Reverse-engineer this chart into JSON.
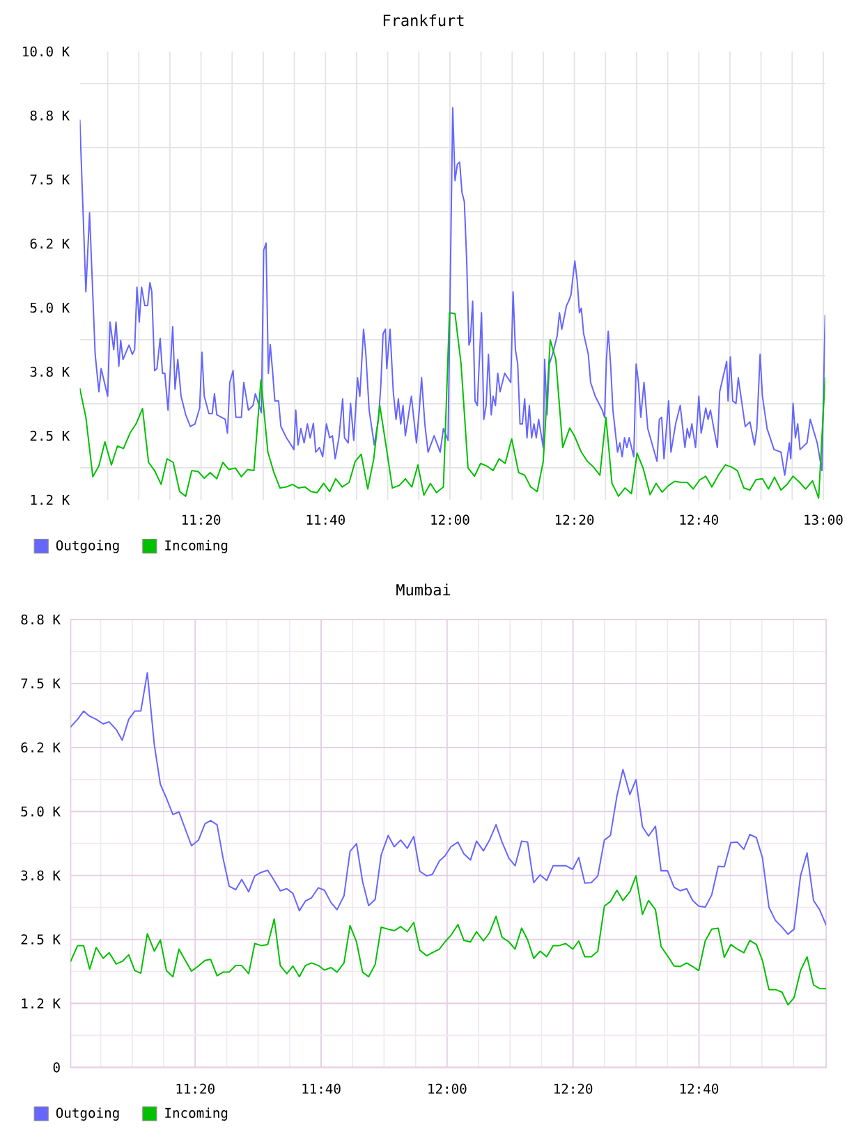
{
  "chart_data": [
    {
      "type": "line",
      "title": "Frankfurt",
      "xlim": [
        11.0087,
        13.005
      ],
      "ylim": [
        1250,
        10000
      ],
      "xticks": [
        {
          "value": 11.0833,
          "label": null
        },
        {
          "value": 11.1667,
          "label": null
        },
        {
          "value": 11.25,
          "label": null
        },
        {
          "value": 11.3333,
          "label": "11:20"
        },
        {
          "value": 11.4167,
          "label": null
        },
        {
          "value": 11.5,
          "label": null
        },
        {
          "value": 11.5833,
          "label": null
        },
        {
          "value": 11.6667,
          "label": "11:40"
        },
        {
          "value": 11.75,
          "label": null
        },
        {
          "value": 11.8333,
          "label": null
        },
        {
          "value": 11.9167,
          "label": null
        },
        {
          "value": 12,
          "label": "12:00"
        },
        {
          "value": 12.0833,
          "label": null
        },
        {
          "value": 12.1667,
          "label": null
        },
        {
          "value": 12.25,
          "label": null
        },
        {
          "value": 12.3333,
          "label": "12:20"
        },
        {
          "value": 12.4167,
          "label": null
        },
        {
          "value": 12.5,
          "label": null
        },
        {
          "value": 12.5833,
          "label": null
        },
        {
          "value": 12.6667,
          "label": "12:40"
        },
        {
          "value": 12.75,
          "label": null
        },
        {
          "value": 12.8333,
          "label": null
        },
        {
          "value": 12.9167,
          "label": null
        },
        {
          "value": 13,
          "label": "13:00"
        }
      ],
      "yticks": [
        {
          "value": 1250,
          "label": "1.2 K"
        },
        {
          "value": 1875,
          "label": null
        },
        {
          "value": 2500,
          "label": "2.5 K"
        },
        {
          "value": 3125,
          "label": null
        },
        {
          "value": 3750,
          "label": "3.8 K"
        },
        {
          "value": 4375,
          "label": null
        },
        {
          "value": 5000,
          "label": "5.0 K"
        },
        {
          "value": 5625,
          "label": null
        },
        {
          "value": 6250,
          "label": "6.2 K"
        },
        {
          "value": 6875,
          "label": null
        },
        {
          "value": 7500,
          "label": "7.5 K"
        },
        {
          "value": 8125,
          "label": null
        },
        {
          "value": 8750,
          "label": "8.8 K"
        },
        {
          "value": 9375,
          "label": null
        },
        {
          "value": 10000,
          "label": "10.0 K"
        }
      ],
      "grid": true,
      "legend": "bottom left",
      "series": [
        {
          "name": "Outgoing",
          "color": "#6666ff",
          "x": [
            11.0087,
            11.0249,
            11.0348,
            11.0498,
            11.0597,
            11.0659,
            11.0833,
            11.0896,
            11.0995,
            11.1057,
            11.1132,
            11.1182,
            11.1244,
            11.1405,
            11.1493,
            11.1555,
            11.1617,
            11.1679,
            11.1741,
            11.1828,
            11.1903,
            11.1965,
            11.2015,
            11.209,
            11.2152,
            11.2239,
            11.2301,
            11.2363,
            11.245,
            11.2575,
            11.2637,
            11.2711,
            11.2799,
            11.2923,
            11.3047,
            11.3172,
            11.3296,
            11.3358,
            11.342,
            11.3545,
            11.3632,
            11.3694,
            11.3756,
            11.398,
            11.4042,
            11.4104,
            11.4192,
            11.4266,
            11.4415,
            11.4478,
            11.4602,
            11.4726,
            11.4789,
            11.495,
            11.5012,
            11.5075,
            11.5137,
            11.5187,
            11.5249,
            11.5311,
            11.541,
            11.5473,
            11.5622,
            11.5746,
            11.5821,
            11.5871,
            11.5933,
            11.6007,
            11.6095,
            11.6182,
            11.6256,
            11.6343,
            11.6405,
            11.6505,
            11.6592,
            11.6692,
            11.6779,
            11.6853,
            11.6928,
            11.7027,
            11.7127,
            11.7177,
            11.7276,
            11.7338,
            11.7425,
            11.7525,
            11.7587,
            11.7687,
            11.7749,
            11.7836,
            11.7973,
            11.8085,
            11.8147,
            11.8209,
            11.8271,
            11.8308,
            11.8396,
            11.8483,
            11.8557,
            11.8619,
            11.8682,
            11.8744,
            11.8806,
            11.8968,
            11.9104,
            11.9179,
            11.9241,
            11.9328,
            11.9415,
            11.9577,
            11.9739,
            11.9826,
            11.995,
            12.0075,
            12.0137,
            12.0199,
            12.0261,
            12.0323,
            12.0386,
            12.0448,
            12.051,
            12.0547,
            12.0609,
            12.0672,
            12.0734,
            12.0846,
            12.0908,
            12.097,
            12.1032,
            12.1107,
            12.1157,
            12.1219,
            12.1281,
            12.1343,
            12.1468,
            12.1629,
            12.1692,
            12.1754,
            12.1816,
            12.1878,
            12.194,
            12.2002,
            12.2065,
            12.2127,
            12.2189,
            12.2251,
            12.2313,
            12.2376,
            12.25,
            12.2537,
            12.26,
            12.2662,
            12.2749,
            12.2873,
            12.2935,
            12.2998,
            12.3122,
            12.3184,
            12.3246,
            12.3284,
            12.3346,
            12.3408,
            12.347,
            12.352,
            12.3582,
            12.3706,
            12.3769,
            12.3893,
            12.408,
            12.4142,
            12.4192,
            12.4241,
            12.4303,
            12.4366,
            12.449,
            12.4552,
            12.4614,
            12.4677,
            12.4739,
            12.4801,
            12.4925,
            12.4988,
            12.505,
            12.5112,
            12.5199,
            12.5299,
            12.5547,
            12.5609,
            12.5672,
            12.5734,
            12.5858,
            12.592,
            12.6045,
            12.6169,
            12.6294,
            12.6356,
            12.6418,
            12.648,
            12.658,
            12.6667,
            12.6729,
            12.6853,
            12.6915,
            12.6978,
            12.7164,
            12.7226,
            12.7413,
            12.745,
            12.7512,
            12.7575,
            12.7662,
            12.7724,
            12.791,
            12.8035,
            12.8159,
            12.8221,
            12.8308,
            12.8371,
            12.8495,
            12.8682,
            12.8868,
            12.8968,
            12.9092,
            12.9129,
            12.9192,
            12.9254,
            12.9316,
            12.9378,
            12.9565,
            12.9652,
            12.9838,
            12.9963,
            13.005
          ],
          "values": [
            8660,
            5310,
            6850,
            4090,
            3360,
            3810,
            3270,
            4720,
            4180,
            4720,
            3860,
            4360,
            3990,
            4270,
            4090,
            4180,
            5400,
            4720,
            5400,
            5040,
            5040,
            5490,
            5310,
            3770,
            3810,
            4400,
            3720,
            3720,
            3000,
            4630,
            3410,
            3990,
            3270,
            2910,
            2680,
            2730,
            3040,
            4130,
            3270,
            2930,
            2930,
            3320,
            2910,
            2820,
            2550,
            3540,
            3770,
            2860,
            2860,
            3540,
            3000,
            3090,
            3320,
            2950,
            6120,
            6260,
            3720,
            4280,
            3770,
            3180,
            3180,
            2680,
            2460,
            2320,
            2230,
            3000,
            2320,
            2640,
            2360,
            2730,
            2460,
            2740,
            2180,
            2270,
            2090,
            2730,
            2460,
            2500,
            2050,
            2460,
            3220,
            2460,
            2360,
            3130,
            2410,
            3630,
            3270,
            4580,
            4090,
            3000,
            2320,
            2820,
            3450,
            4490,
            4580,
            3810,
            4580,
            3360,
            2820,
            3220,
            2730,
            3090,
            2500,
            3270,
            2360,
            3000,
            3630,
            2730,
            2180,
            2500,
            2180,
            2640,
            2410,
            8900,
            7480,
            7800,
            7840,
            7250,
            7070,
            5940,
            4270,
            4360,
            5130,
            3180,
            3090,
            4900,
            2820,
            3090,
            4090,
            2910,
            3270,
            3090,
            3720,
            3360,
            3720,
            3540,
            5310,
            4180,
            3900,
            2730,
            2730,
            3220,
            2460,
            3090,
            2460,
            2730,
            2460,
            2820,
            2270,
            3990,
            2910,
            3900,
            4090,
            4450,
            4900,
            4580,
            5040,
            5130,
            5260,
            5530,
            5910,
            5530,
            4900,
            4990,
            4490,
            4090,
            3540,
            3270,
            3000,
            2860,
            3990,
            4540,
            3900,
            3000,
            2180,
            2360,
            2090,
            2460,
            2270,
            2460,
            2090,
            3900,
            3540,
            2860,
            3540,
            2640,
            2000,
            2820,
            2860,
            2050,
            3180,
            2180,
            2730,
            3090,
            2270,
            2640,
            2460,
            2730,
            2270,
            3270,
            2550,
            3040,
            2820,
            3000,
            2270,
            3360,
            3950,
            3180,
            4040,
            3180,
            3130,
            3630,
            2680,
            2770,
            2320,
            2640,
            4090,
            3270,
            2640,
            2230,
            2180,
            1730,
            2360,
            2050,
            3130,
            2460,
            2730,
            2230,
            2360,
            2820,
            2360,
            1820,
            4850
          ]
        },
        {
          "name": "Incoming",
          "color": "#00c000",
          "x": [
            11.0087,
            11.0249,
            11.0435,
            11.0597,
            11.0759,
            11.0933,
            11.1095,
            11.1256,
            11.143,
            11.1592,
            11.1766,
            11.1928,
            11.209,
            11.2264,
            11.2425,
            11.2587,
            11.2761,
            11.2923,
            11.3085,
            11.3259,
            11.342,
            11.3582,
            11.3756,
            11.3918,
            11.408,
            11.4254,
            11.4415,
            11.4577,
            11.4751,
            11.4938,
            11.5124,
            11.5286,
            11.5448,
            11.5622,
            11.5784,
            11.5945,
            11.6119,
            11.6281,
            11.6443,
            11.6617,
            11.6779,
            11.694,
            11.7114,
            11.7301,
            11.7463,
            11.7624,
            11.7799,
            11.796,
            11.8122,
            11.8296,
            11.8458,
            11.8644,
            11.8806,
            11.898,
            11.9142,
            11.9303,
            11.9478,
            11.9639,
            11.9826,
            11.9988,
            12.0137,
            12.0299,
            12.0485,
            12.0659,
            12.0821,
            12.0983,
            12.1157,
            12.1318,
            12.148,
            12.1654,
            12.1841,
            12.2002,
            12.2164,
            12.2338,
            12.25,
            12.2687,
            12.2836,
            12.3022,
            12.3209,
            12.3333,
            12.352,
            12.3682,
            12.3843,
            12.4017,
            12.4179,
            12.4341,
            12.4515,
            12.4689,
            12.4863,
            12.5012,
            12.5174,
            12.5361,
            12.5522,
            12.5684,
            12.5858,
            12.602,
            12.6194,
            12.6356,
            12.6517,
            12.6692,
            12.6853,
            12.7015,
            12.7189,
            12.7376,
            12.7537,
            12.7699,
            12.7873,
            12.8035,
            12.8197,
            12.8371,
            12.8532,
            12.8694,
            12.8868,
            12.903,
            12.9192,
            12.9366,
            12.9527,
            12.9714,
            12.9876,
            13.005
          ],
          "values": [
            3420,
            2860,
            1700,
            1910,
            2380,
            1930,
            2300,
            2250,
            2550,
            2730,
            3030,
            1980,
            1820,
            1550,
            2050,
            1980,
            1410,
            1320,
            1820,
            1800,
            1670,
            1780,
            1660,
            1980,
            1840,
            1870,
            1700,
            1840,
            1820,
            3590,
            2180,
            1780,
            1480,
            1500,
            1550,
            1480,
            1500,
            1410,
            1390,
            1570,
            1410,
            1660,
            1500,
            1590,
            2000,
            2140,
            1460,
            2050,
            3090,
            2270,
            1480,
            1530,
            1660,
            1500,
            1930,
            1340,
            1570,
            1390,
            1500,
            4900,
            4880,
            3900,
            1870,
            1710,
            1960,
            1910,
            1820,
            2050,
            1960,
            2440,
            1780,
            1730,
            1500,
            1410,
            2000,
            4370,
            3990,
            2270,
            2650,
            2500,
            2180,
            2000,
            1890,
            1730,
            2860,
            1570,
            1320,
            1480,
            1370,
            2160,
            1870,
            1350,
            1570,
            1400,
            1530,
            1610,
            1590,
            1590,
            1460,
            1640,
            1710,
            1500,
            1730,
            1930,
            1890,
            1820,
            1480,
            1440,
            1640,
            1660,
            1460,
            1690,
            1440,
            1550,
            1710,
            1590,
            1460,
            1620,
            1280,
            3630
          ]
        }
      ]
    },
    {
      "type": "line",
      "title": "Mumbai",
      "xlim": [
        11.0037,
        13.0032
      ],
      "ylim": [
        0,
        8750
      ],
      "x": [
        11.0037,
        11.0221,
        11.0381,
        11.0541,
        11.0714,
        11.0898,
        11.1058,
        11.1243,
        11.1403,
        11.1575,
        11.1735,
        11.1895,
        11.2067,
        11.2252,
        11.2412,
        11.2572,
        11.2744,
        11.2904,
        11.3064,
        11.3236,
        11.3421,
        11.3593,
        11.3741,
        11.3913,
        11.4073,
        11.4233,
        11.4405,
        11.4565,
        11.475,
        11.491,
        11.5082,
        11.5254,
        11.5426,
        11.5586,
        11.5759,
        11.5919,
        11.6091,
        11.6251,
        11.6411,
        11.6595,
        11.6755,
        11.6928,
        11.7088,
        11.7272,
        11.7432,
        11.7604,
        11.7764,
        11.7924,
        11.8097,
        11.8256,
        11.8441,
        11.8601,
        11.8773,
        11.8946,
        11.9118,
        11.9278,
        11.9462,
        11.961,
        11.9795,
        11.9942,
        12.0102,
        12.0287,
        12.0447,
        12.0619,
        12.0779,
        12.0964,
        12.1123,
        12.1296,
        12.1456,
        12.164,
        12.18,
        12.1973,
        12.2132,
        12.2292,
        12.2465,
        12.2637,
        12.2809,
        12.2969,
        12.3141,
        12.3326,
        12.3486,
        12.3646,
        12.3818,
        12.399,
        12.4163,
        12.4323,
        12.4495,
        12.4655,
        12.4839,
        12.4999,
        12.5172,
        12.5332,
        12.5516,
        12.5664,
        12.5836,
        12.6008,
        12.6168,
        12.6341,
        12.6501,
        12.666,
        12.6833,
        12.7005,
        12.7177,
        12.7337,
        12.751,
        12.7682,
        12.7854,
        12.8014,
        12.8186,
        12.8346,
        12.8518,
        12.8691,
        12.8863,
        12.9023,
        12.9183,
        12.9355,
        12.9528,
        12.97,
        12.986,
        13.0032
      ],
      "xticks": [
        {
          "value": 11.0833,
          "label": null
        },
        {
          "value": 11.1667,
          "label": null
        },
        {
          "value": 11.25,
          "label": null
        },
        {
          "value": 11.3333,
          "label": "11:20"
        },
        {
          "value": 11.4167,
          "label": null
        },
        {
          "value": 11.5,
          "label": null
        },
        {
          "value": 11.5833,
          "label": null
        },
        {
          "value": 11.6667,
          "label": "11:40"
        },
        {
          "value": 11.75,
          "label": null
        },
        {
          "value": 11.8333,
          "label": null
        },
        {
          "value": 11.9167,
          "label": null
        },
        {
          "value": 12,
          "label": "12:00"
        },
        {
          "value": 12.0833,
          "label": null
        },
        {
          "value": 12.1667,
          "label": null
        },
        {
          "value": 12.25,
          "label": null
        },
        {
          "value": 12.3333,
          "label": "12:20"
        },
        {
          "value": 12.4167,
          "label": null
        },
        {
          "value": 12.5,
          "label": null
        },
        {
          "value": 12.5833,
          "label": null
        },
        {
          "value": 12.6667,
          "label": "12:40"
        },
        {
          "value": 12.75,
          "label": null
        },
        {
          "value": 12.8333,
          "label": null
        },
        {
          "value": 12.9167,
          "label": null
        }
      ],
      "yticks": [
        0,
        {
          "value": 625,
          "label": null
        },
        {
          "value": 1250,
          "label": "1.2 K"
        },
        {
          "value": 1875,
          "label": null
        },
        {
          "value": 2500,
          "label": "2.5 K"
        },
        {
          "value": 3125,
          "label": null
        },
        {
          "value": 3750,
          "label": "3.8 K"
        },
        {
          "value": 4375,
          "label": null
        },
        {
          "value": 5000,
          "label": "5.0 K"
        },
        {
          "value": 5625,
          "label": null
        },
        {
          "value": 6250,
          "label": "6.2 K"
        },
        {
          "value": 6875,
          "label": null
        },
        {
          "value": 7500,
          "label": "7.5 K"
        },
        {
          "value": 8125,
          "label": null
        },
        {
          "value": 8750,
          "label": "8.8 K"
        }
      ],
      "grid": true,
      "legend": "bottom left",
      "series": [
        {
          "name": "Outgoing",
          "color": "#6666ff",
          "values": [
            6650,
            6800,
            6960,
            6860,
            6800,
            6710,
            6750,
            6600,
            6390,
            6800,
            6960,
            6960,
            7710,
            6300,
            5530,
            5260,
            4940,
            4990,
            4670,
            4330,
            4440,
            4760,
            4820,
            4740,
            4080,
            3540,
            3470,
            3670,
            3430,
            3740,
            3810,
            3850,
            3650,
            3450,
            3490,
            3400,
            3060,
            3250,
            3310,
            3510,
            3460,
            3220,
            3080,
            3350,
            4220,
            4370,
            3630,
            3160,
            3280,
            4150,
            4530,
            4310,
            4440,
            4280,
            4510,
            3830,
            3740,
            3770,
            4030,
            4130,
            4310,
            4400,
            4170,
            4050,
            4420,
            4230,
            4440,
            4740,
            4400,
            4080,
            3940,
            4420,
            4400,
            3610,
            3760,
            3650,
            3940,
            3940,
            3940,
            3870,
            4100,
            3600,
            3610,
            3740,
            4440,
            4530,
            5300,
            5820,
            5330,
            5620,
            4700,
            4520,
            4710,
            3840,
            3840,
            3520,
            3450,
            3490,
            3260,
            3150,
            3130,
            3370,
            3930,
            3920,
            4390,
            4400,
            4260,
            4550,
            4490,
            4100,
            3130,
            2870,
            2740,
            2600,
            2700,
            3740,
            4190,
            3260,
            3080,
            2780
          ]
        },
        {
          "name": "Incoming",
          "color": "#00c000",
          "values": [
            2070,
            2380,
            2380,
            1920,
            2340,
            2130,
            2240,
            2020,
            2070,
            2200,
            1890,
            1840,
            2610,
            2270,
            2490,
            1890,
            1770,
            2310,
            2100,
            1880,
            1980,
            2090,
            2110,
            1790,
            1860,
            1860,
            1990,
            1990,
            1830,
            2420,
            2380,
            2400,
            2900,
            1990,
            1830,
            1980,
            1770,
            1990,
            2040,
            1990,
            1900,
            1950,
            1860,
            2040,
            2770,
            2450,
            1860,
            1770,
            2010,
            2740,
            2700,
            2670,
            2750,
            2650,
            2830,
            2290,
            2180,
            2240,
            2310,
            2450,
            2580,
            2790,
            2480,
            2450,
            2650,
            2470,
            2630,
            2950,
            2540,
            2450,
            2310,
            2720,
            2490,
            2130,
            2270,
            2160,
            2380,
            2380,
            2420,
            2310,
            2470,
            2160,
            2160,
            2270,
            3150,
            3240,
            3460,
            3260,
            3430,
            3740,
            2990,
            3260,
            3080,
            2360,
            2180,
            1980,
            1970,
            2040,
            1970,
            1890,
            2470,
            2700,
            2720,
            2150,
            2400,
            2310,
            2240,
            2480,
            2400,
            2090,
            1520,
            1520,
            1470,
            1220,
            1360,
            1890,
            2160,
            1610,
            1540,
            1540
          ]
        }
      ]
    }
  ]
}
